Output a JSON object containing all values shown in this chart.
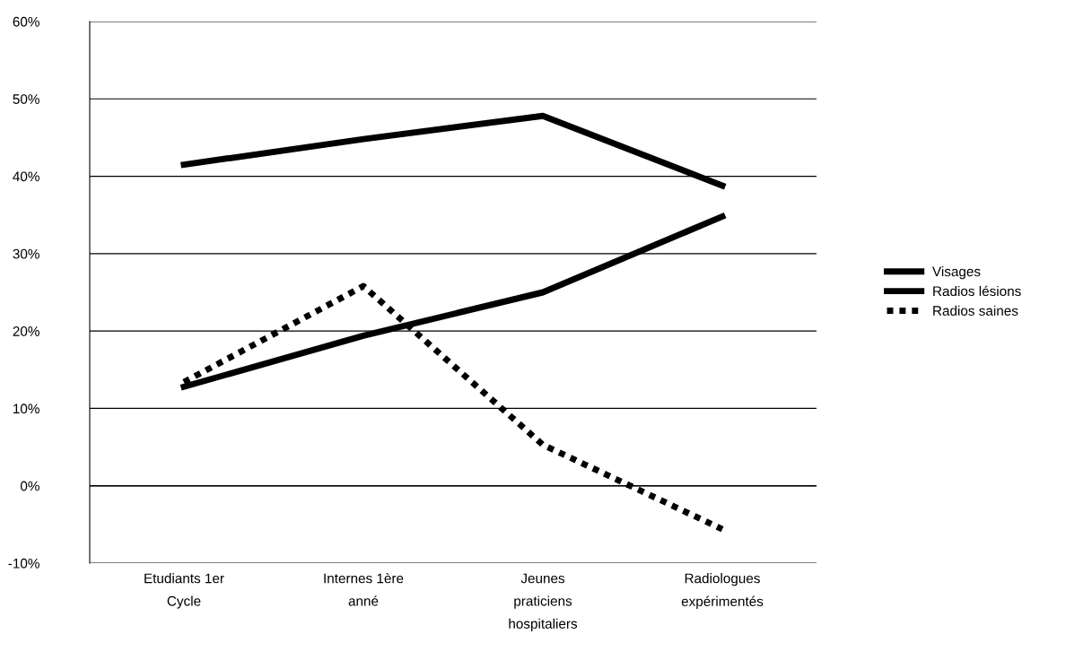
{
  "chart_data": {
    "type": "line",
    "categories": [
      "Etudiants 1er\nCycle",
      "Internes 1ère\nanné",
      "Jeunes\npraticiens\nhospitaliers",
      "Radiologues\nexpérimentés"
    ],
    "series": [
      {
        "name": "Visages",
        "color": "#000000",
        "line_style": "solid",
        "values": [
          41.5,
          44.8,
          47.8,
          38.8
        ]
      },
      {
        "name": "Radios lésions",
        "color": "#000000",
        "line_style": "solid",
        "values": [
          12.8,
          19.4,
          25.0,
          34.8
        ]
      },
      {
        "name": "Radios saines",
        "color": "#000000",
        "line_style": "dotted",
        "values": [
          13.4,
          25.8,
          5.3,
          -5.6
        ]
      }
    ],
    "ylim": [
      -10,
      60
    ],
    "yticks": [
      {
        "value": -10,
        "label": "-10%"
      },
      {
        "value": 0,
        "label": "0%"
      },
      {
        "value": 10,
        "label": "10%"
      },
      {
        "value": 20,
        "label": "20%"
      },
      {
        "value": 30,
        "label": "30%"
      },
      {
        "value": 40,
        "label": "40%"
      },
      {
        "value": 50,
        "label": "50%"
      },
      {
        "value": 60,
        "label": "60%"
      }
    ],
    "ref_lines": [
      {
        "axis": "y",
        "value": 0
      }
    ],
    "grid": "y",
    "legend": "right"
  }
}
